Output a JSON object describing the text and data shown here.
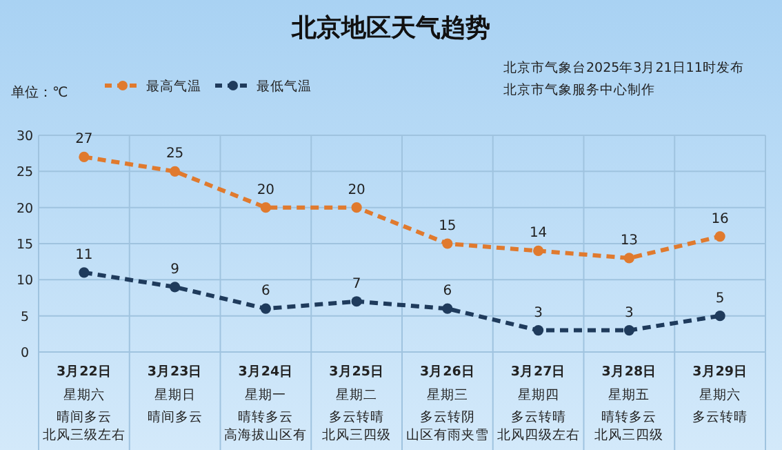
{
  "chart_data": {
    "type": "line",
    "title": "北京地区天气趋势",
    "ylabel": "单位：℃",
    "annotations": [
      "北京市气象台2025年3月21日11时发布",
      "北京市气象服务中心制作",
      "星期六",
      "晴间多云",
      "北风三级左右",
      "星期日",
      "晴间多云",
      "星期一",
      "晴转多云",
      "高海拔山区有",
      "星期二",
      "多云转晴",
      "北风三四级",
      "星期三",
      "多云转阴",
      "山区有雨夹雪",
      "星期四",
      "多云转晴",
      "北风四级左右",
      "星期五",
      "晴转多云",
      "北风三四级",
      "星期六",
      "多云转晴"
    ],
    "categories": [
      "3月22日",
      "3月23日",
      "3月24日",
      "3月25日",
      "3月26日",
      "3月27日",
      "3月28日",
      "3月29日"
    ],
    "series": [
      {
        "name": "最高气温",
        "color": "#e07a2e",
        "values": [
          27,
          25,
          20,
          20,
          15,
          14,
          13,
          16
        ]
      },
      {
        "name": "最低气温",
        "color": "#1f3b5c",
        "values": [
          11,
          9,
          6,
          7,
          6,
          3,
          3,
          5
        ]
      }
    ],
    "ylim": [
      0,
      30
    ],
    "yticks": [
      0,
      5,
      10,
      15,
      20,
      25,
      30
    ],
    "grid": true,
    "legend": "top left",
    "marker": "circle",
    "line_style": "dashed",
    "data_labels": true
  }
}
